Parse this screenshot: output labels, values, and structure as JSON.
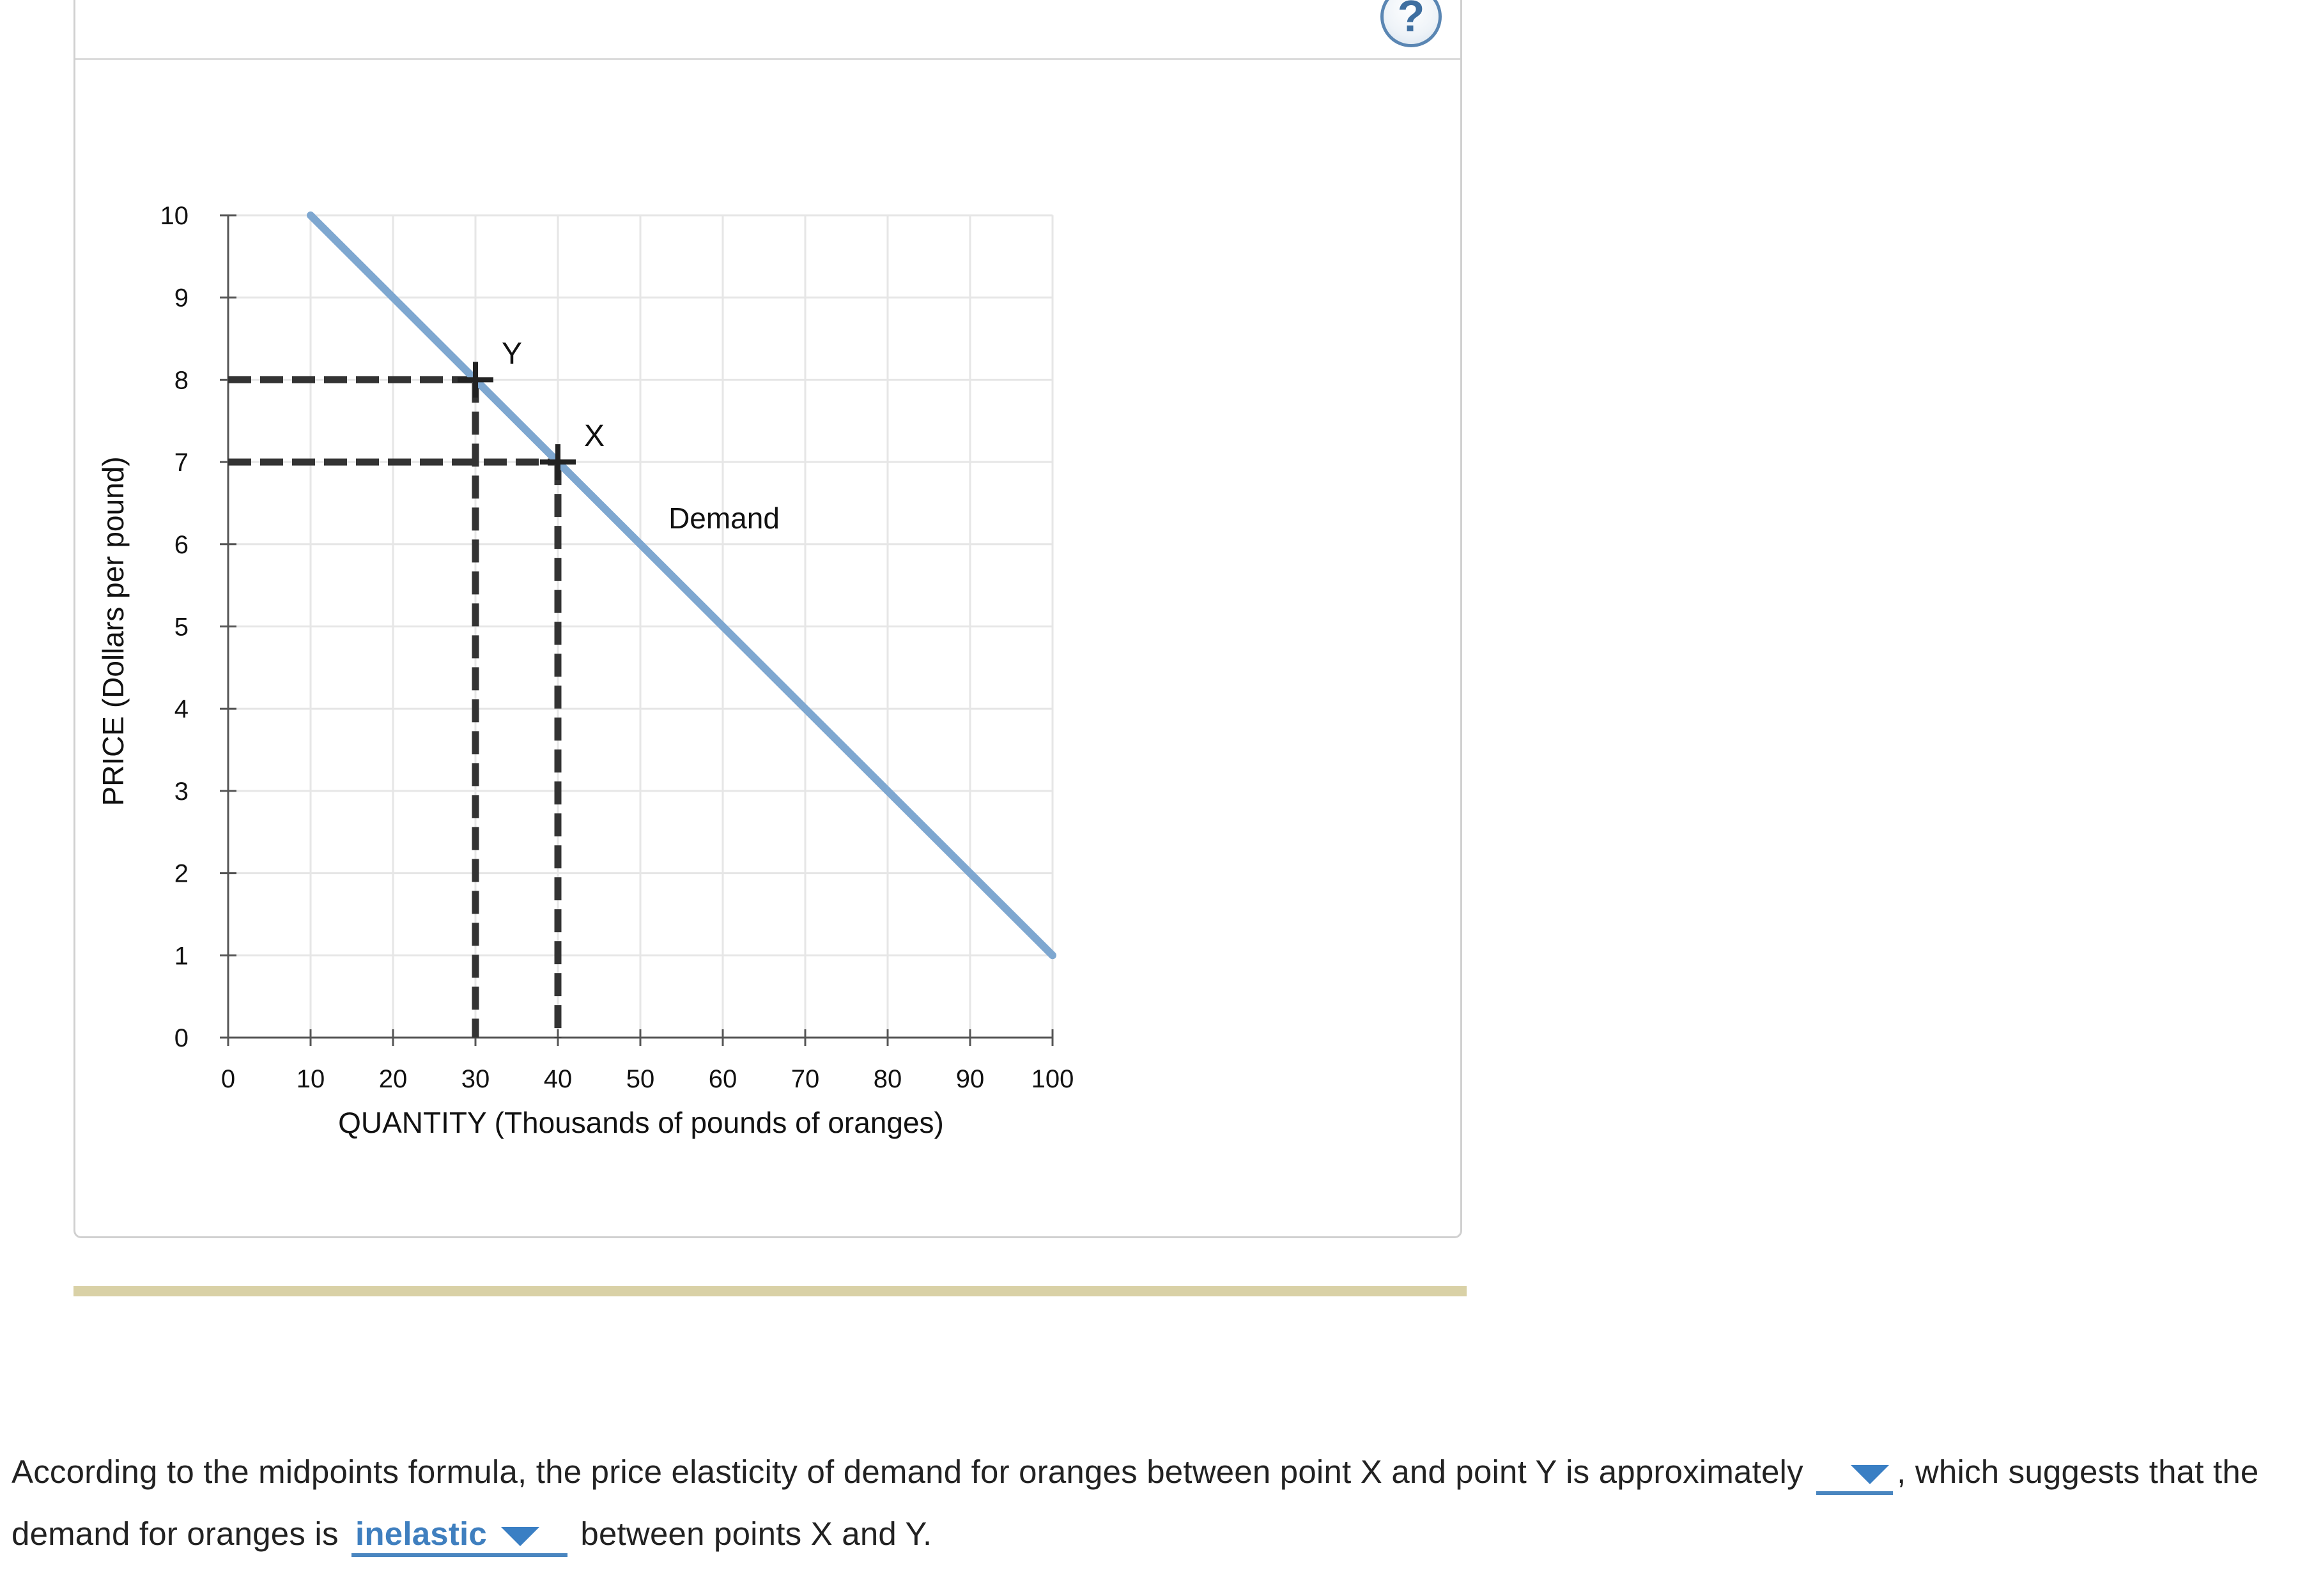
{
  "help": {
    "label": "?"
  },
  "chart_data": {
    "type": "line",
    "title": "",
    "xlabel": "QUANTITY (Thousands of pounds of oranges)",
    "ylabel": "PRICE (Dollars per pound)",
    "xlim": [
      0,
      100
    ],
    "ylim": [
      0,
      10
    ],
    "x_ticks": [
      0,
      10,
      20,
      30,
      40,
      50,
      60,
      70,
      80,
      90,
      100
    ],
    "y_ticks": [
      0,
      1,
      2,
      3,
      4,
      5,
      6,
      7,
      8,
      9,
      10
    ],
    "grid": true,
    "series": [
      {
        "name": "Demand",
        "color": "#7ea7d0",
        "x": [
          10,
          100
        ],
        "y": [
          10,
          1
        ]
      }
    ],
    "points": [
      {
        "label": "Y",
        "x": 30,
        "y": 8
      },
      {
        "label": "X",
        "x": 40,
        "y": 7
      }
    ]
  },
  "question": {
    "part1": "According to the midpoints formula, the price elasticity of demand for oranges between point X and point Y is approximately",
    "part2": ", which suggests that the demand for oranges is",
    "part3": "between points X and Y.",
    "dropdown_elasticity_value": "",
    "dropdown_type_value": "inelastic"
  }
}
